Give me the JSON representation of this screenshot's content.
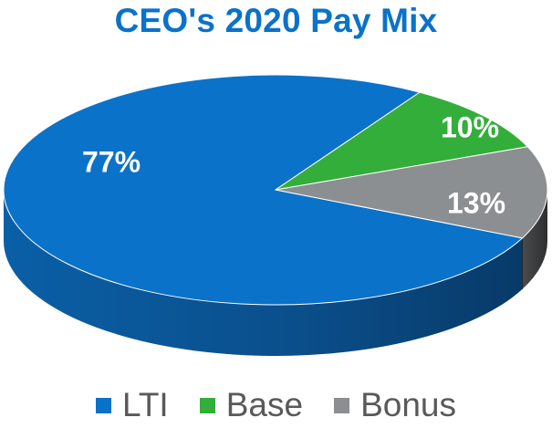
{
  "chart_data": {
    "type": "pie",
    "title": "CEO's 2020 Pay Mix",
    "categories": [
      "LTI",
      "Base",
      "Bonus"
    ],
    "values": [
      77,
      10,
      13
    ],
    "data_labels": [
      "77%",
      "10%",
      "13%"
    ],
    "colors": [
      "#0B72C9",
      "#33AE3A",
      "#8C8F91"
    ],
    "three_d": true,
    "legend_position": "bottom"
  },
  "title_color": "#0B72C9"
}
